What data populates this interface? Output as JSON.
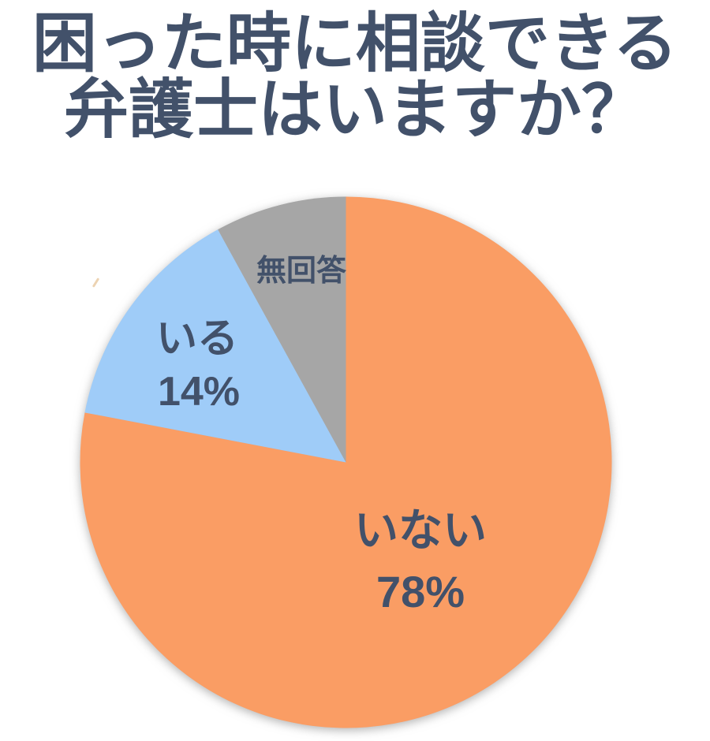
{
  "title": {
    "line1": "困った時に相談できる",
    "line2": "弁護士はいますか？",
    "color": "#42516A"
  },
  "chart_data": {
    "type": "pie",
    "title": "困った時に相談できる弁護士はいますか？",
    "start_angle_deg": 0,
    "direction": "clockwise",
    "legend": "none",
    "labels_on_slices": true,
    "label_color": "#42516A",
    "background_color": "#ffffff",
    "slices": [
      {
        "label": "いない",
        "value": 78,
        "value_label": "78%",
        "color": "#FA9D64"
      },
      {
        "label": "いる",
        "value": 14,
        "value_label": "14%",
        "color": "#9FCCF8"
      },
      {
        "label": "無回答",
        "value": 8,
        "value_label": "",
        "color": "#A6A6A6"
      }
    ],
    "geometry": {
      "center_x": 438.5,
      "center_y": 586.5,
      "radius": 337
    }
  }
}
